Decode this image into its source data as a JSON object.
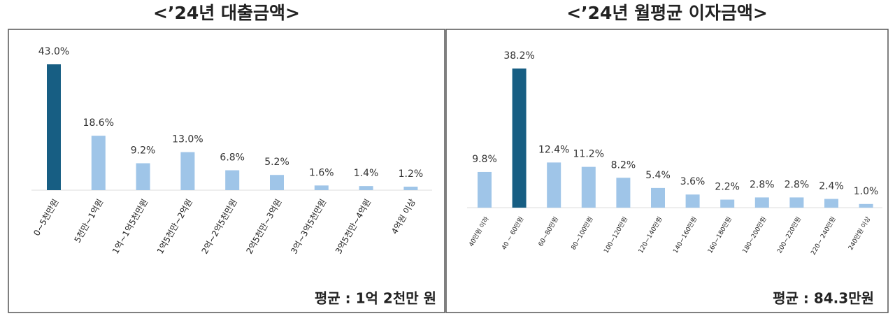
{
  "chart_data": [
    {
      "type": "bar",
      "title": "<’24년 대출금액>",
      "categories": [
        "0~5천만원",
        "5천만~1억원",
        "1억~1억5천만원",
        "1억5천만~2억원",
        "2억~2억5천만원",
        "2억5천만~3억원",
        "3억~3억5천만원",
        "3억5천만~4억원",
        "4억원 이상"
      ],
      "values": [
        43.0,
        18.6,
        9.2,
        13.0,
        6.8,
        5.2,
        1.6,
        1.4,
        1.2
      ],
      "value_labels": [
        "43.0%",
        "18.6%",
        "9.2%",
        "13.0%",
        "6.8%",
        "5.2%",
        "1.6%",
        "1.4%",
        "1.2%"
      ],
      "colors": [
        "#175e83",
        "#9fc5e8",
        "#9fc5e8",
        "#9fc5e8",
        "#9fc5e8",
        "#9fc5e8",
        "#9fc5e8",
        "#9fc5e8",
        "#9fc5e8"
      ],
      "annotation": "평균 : 1억 2천만 원"
    },
    {
      "type": "bar",
      "title": "<’24년 월평균 이자금액>",
      "categories": [
        "40만원 이하",
        "40 ~ 60만원",
        "60~80만원",
        "80~100만원",
        "100~120만원",
        "120~140만원",
        "140~160만원",
        "160~180만원",
        "180~200만원",
        "200~220만원",
        "220~ 240만원",
        "240만원 이상"
      ],
      "values": [
        9.8,
        38.2,
        12.4,
        11.2,
        8.2,
        5.4,
        3.6,
        2.2,
        2.8,
        2.8,
        2.4,
        1.0
      ],
      "value_labels": [
        "9.8%",
        "38.2%",
        "12.4%",
        "11.2%",
        "8.2%",
        "5.4%",
        "3.6%",
        "2.2%",
        "2.8%",
        "2.8%",
        "2.4%",
        "1.0%"
      ],
      "colors": [
        "#9fc5e8",
        "#175e83",
        "#9fc5e8",
        "#9fc5e8",
        "#9fc5e8",
        "#9fc5e8",
        "#9fc5e8",
        "#9fc5e8",
        "#9fc5e8",
        "#9fc5e8",
        "#9fc5e8",
        "#9fc5e8"
      ],
      "annotation": "평균 : 84.3만원"
    }
  ]
}
